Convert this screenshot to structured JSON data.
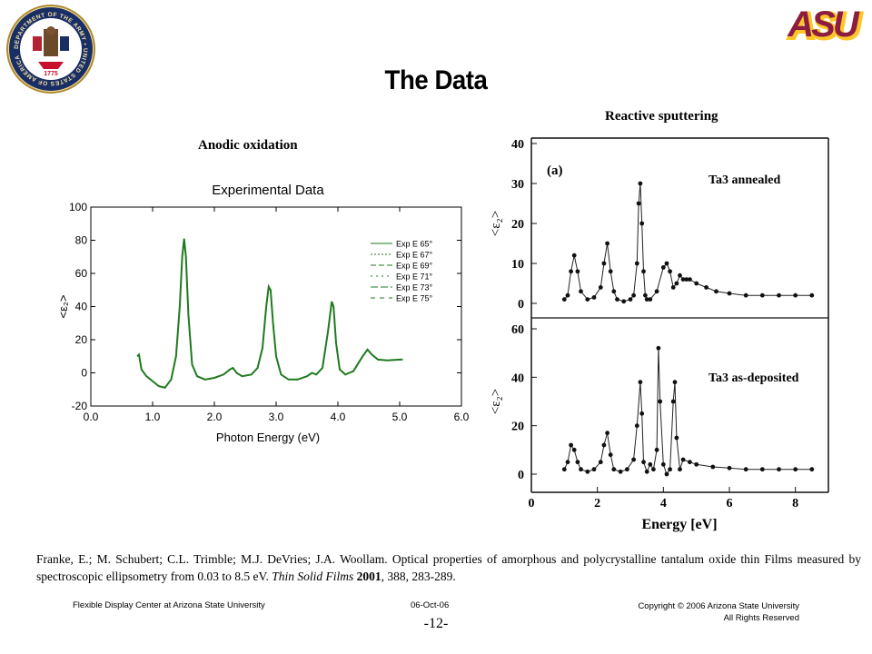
{
  "title": "The Data",
  "labels": {
    "left_method": "Anodic oxidation",
    "right_method": "Reactive sputtering"
  },
  "logos": {
    "seal_icon": "army-seal-icon",
    "seal_text": "DEPARTMENT OF THE ARMY • UNITED STATES OF AMERICA",
    "seal_year": "1775",
    "asu_text": "ASU",
    "asu_color": "#8c1d40",
    "asu_accent": "#ffc627"
  },
  "citation": {
    "text": "Franke, E.; M. Schubert; C.L. Trimble; M.J. DeVries; J.A. Woollam. Optical properties of amorphous and polycrystalline tantalum oxide thin Films measured by spectroscopic ellipsometry from 0.03 to 8.5 eV. ",
    "journal": "Thin Solid Films",
    "year": "2001",
    "pages": ", 388, 283-289."
  },
  "footer": {
    "left": "Flexible Display Center at Arizona State University",
    "date": "06-Oct-06",
    "copyright": "Copyright © 2006 Arizona State University",
    "rights": "All Rights Reserved",
    "page": "-12-"
  },
  "chart_data": [
    {
      "type": "line",
      "title": "Experimental Data",
      "xlabel": "Photon Energy (eV)",
      "ylabel": "<ε₂>",
      "xlim": [
        0.0,
        6.0
      ],
      "ylim": [
        -20,
        100
      ],
      "xticks": [
        "0.0",
        "1.0",
        "2.0",
        "3.0",
        "4.0",
        "5.0",
        "6.0"
      ],
      "yticks": [
        "-20",
        "0",
        "20",
        "40",
        "60",
        "80",
        "100"
      ],
      "legend_position": "right",
      "line_color": "#1f7a1f",
      "series_names": [
        "Exp E 65°",
        "Exp E 67°",
        "Exp E 69°",
        "Exp E 71°",
        "Exp E 73°",
        "Exp E 75°"
      ],
      "x": [
        0.75,
        0.78,
        0.82,
        0.9,
        1.0,
        1.1,
        1.2,
        1.3,
        1.38,
        1.44,
        1.48,
        1.51,
        1.54,
        1.58,
        1.64,
        1.72,
        1.85,
        2.0,
        2.15,
        2.25,
        2.3,
        2.36,
        2.45,
        2.6,
        2.7,
        2.78,
        2.84,
        2.88,
        2.91,
        2.95,
        3.0,
        3.08,
        3.2,
        3.35,
        3.5,
        3.58,
        3.65,
        3.75,
        3.84,
        3.9,
        3.93,
        3.97,
        4.03,
        4.12,
        4.25,
        4.4,
        4.48,
        4.55,
        4.65,
        4.8,
        5.0,
        5.05
      ],
      "y": [
        10,
        11,
        2,
        -2,
        -5,
        -8,
        -9,
        -4,
        10,
        40,
        70,
        81,
        70,
        35,
        5,
        -2,
        -4,
        -3,
        -1,
        2,
        3,
        0,
        -2,
        -1,
        3,
        15,
        40,
        52,
        50,
        30,
        10,
        -1,
        -4,
        -4,
        -2,
        0,
        -1,
        3,
        25,
        43,
        40,
        18,
        2,
        -1,
        1,
        10,
        14,
        11,
        8,
        7.5,
        8,
        8
      ]
    },
    {
      "type": "scatter",
      "panel": "(a)",
      "annotation": "Ta3 annealed",
      "xlabel": "Energy [eV]",
      "ylabel": "<ε₂>",
      "xlim": [
        0,
        9
      ],
      "ylim": [
        0,
        40
      ],
      "yticks": [
        "0",
        "10",
        "20",
        "30",
        "40"
      ],
      "x": [
        1.0,
        1.1,
        1.2,
        1.3,
        1.4,
        1.5,
        1.7,
        1.9,
        2.1,
        2.2,
        2.3,
        2.4,
        2.5,
        2.6,
        2.8,
        3.0,
        3.1,
        3.2,
        3.25,
        3.3,
        3.35,
        3.4,
        3.45,
        3.5,
        3.6,
        3.8,
        4.0,
        4.1,
        4.2,
        4.3,
        4.4,
        4.5,
        4.6,
        4.7,
        4.8,
        5.0,
        5.3,
        5.6,
        6.0,
        6.5,
        7.0,
        7.5,
        8.0,
        8.5
      ],
      "y": [
        1,
        2,
        8,
        12,
        8,
        3,
        1,
        1.5,
        4,
        10,
        15,
        8,
        3,
        1,
        0.5,
        1,
        2,
        10,
        25,
        30,
        20,
        8,
        2,
        1,
        1,
        3,
        9,
        10,
        8,
        4,
        5,
        7,
        6,
        6,
        6,
        5,
        4,
        3,
        2.5,
        2,
        2,
        2,
        2,
        2
      ]
    },
    {
      "type": "scatter",
      "annotation": "Ta3 as-deposited",
      "xlabel": "Energy [eV]",
      "ylabel": "<ε₂>",
      "xlim": [
        0,
        9
      ],
      "ylim": [
        0,
        60
      ],
      "xticks": [
        "0",
        "2",
        "4",
        "6",
        "8"
      ],
      "yticks": [
        "0",
        "20",
        "40",
        "60"
      ],
      "x": [
        1.0,
        1.1,
        1.2,
        1.3,
        1.4,
        1.5,
        1.7,
        1.9,
        2.1,
        2.2,
        2.3,
        2.4,
        2.5,
        2.7,
        2.9,
        3.1,
        3.2,
        3.3,
        3.35,
        3.4,
        3.5,
        3.6,
        3.7,
        3.8,
        3.85,
        3.9,
        4.0,
        4.1,
        4.2,
        4.3,
        4.35,
        4.4,
        4.5,
        4.6,
        4.8,
        5.0,
        5.5,
        6.0,
        6.5,
        7.0,
        7.5,
        8.0,
        8.5
      ],
      "y": [
        2,
        5,
        12,
        10,
        5,
        2,
        1,
        2,
        5,
        12,
        17,
        8,
        2,
        1,
        2,
        6,
        20,
        38,
        25,
        5,
        1,
        4,
        2,
        10,
        52,
        30,
        4,
        0,
        2,
        30,
        38,
        15,
        2,
        6,
        5,
        4,
        3,
        2.5,
        2,
        2,
        2,
        2,
        2
      ]
    }
  ]
}
